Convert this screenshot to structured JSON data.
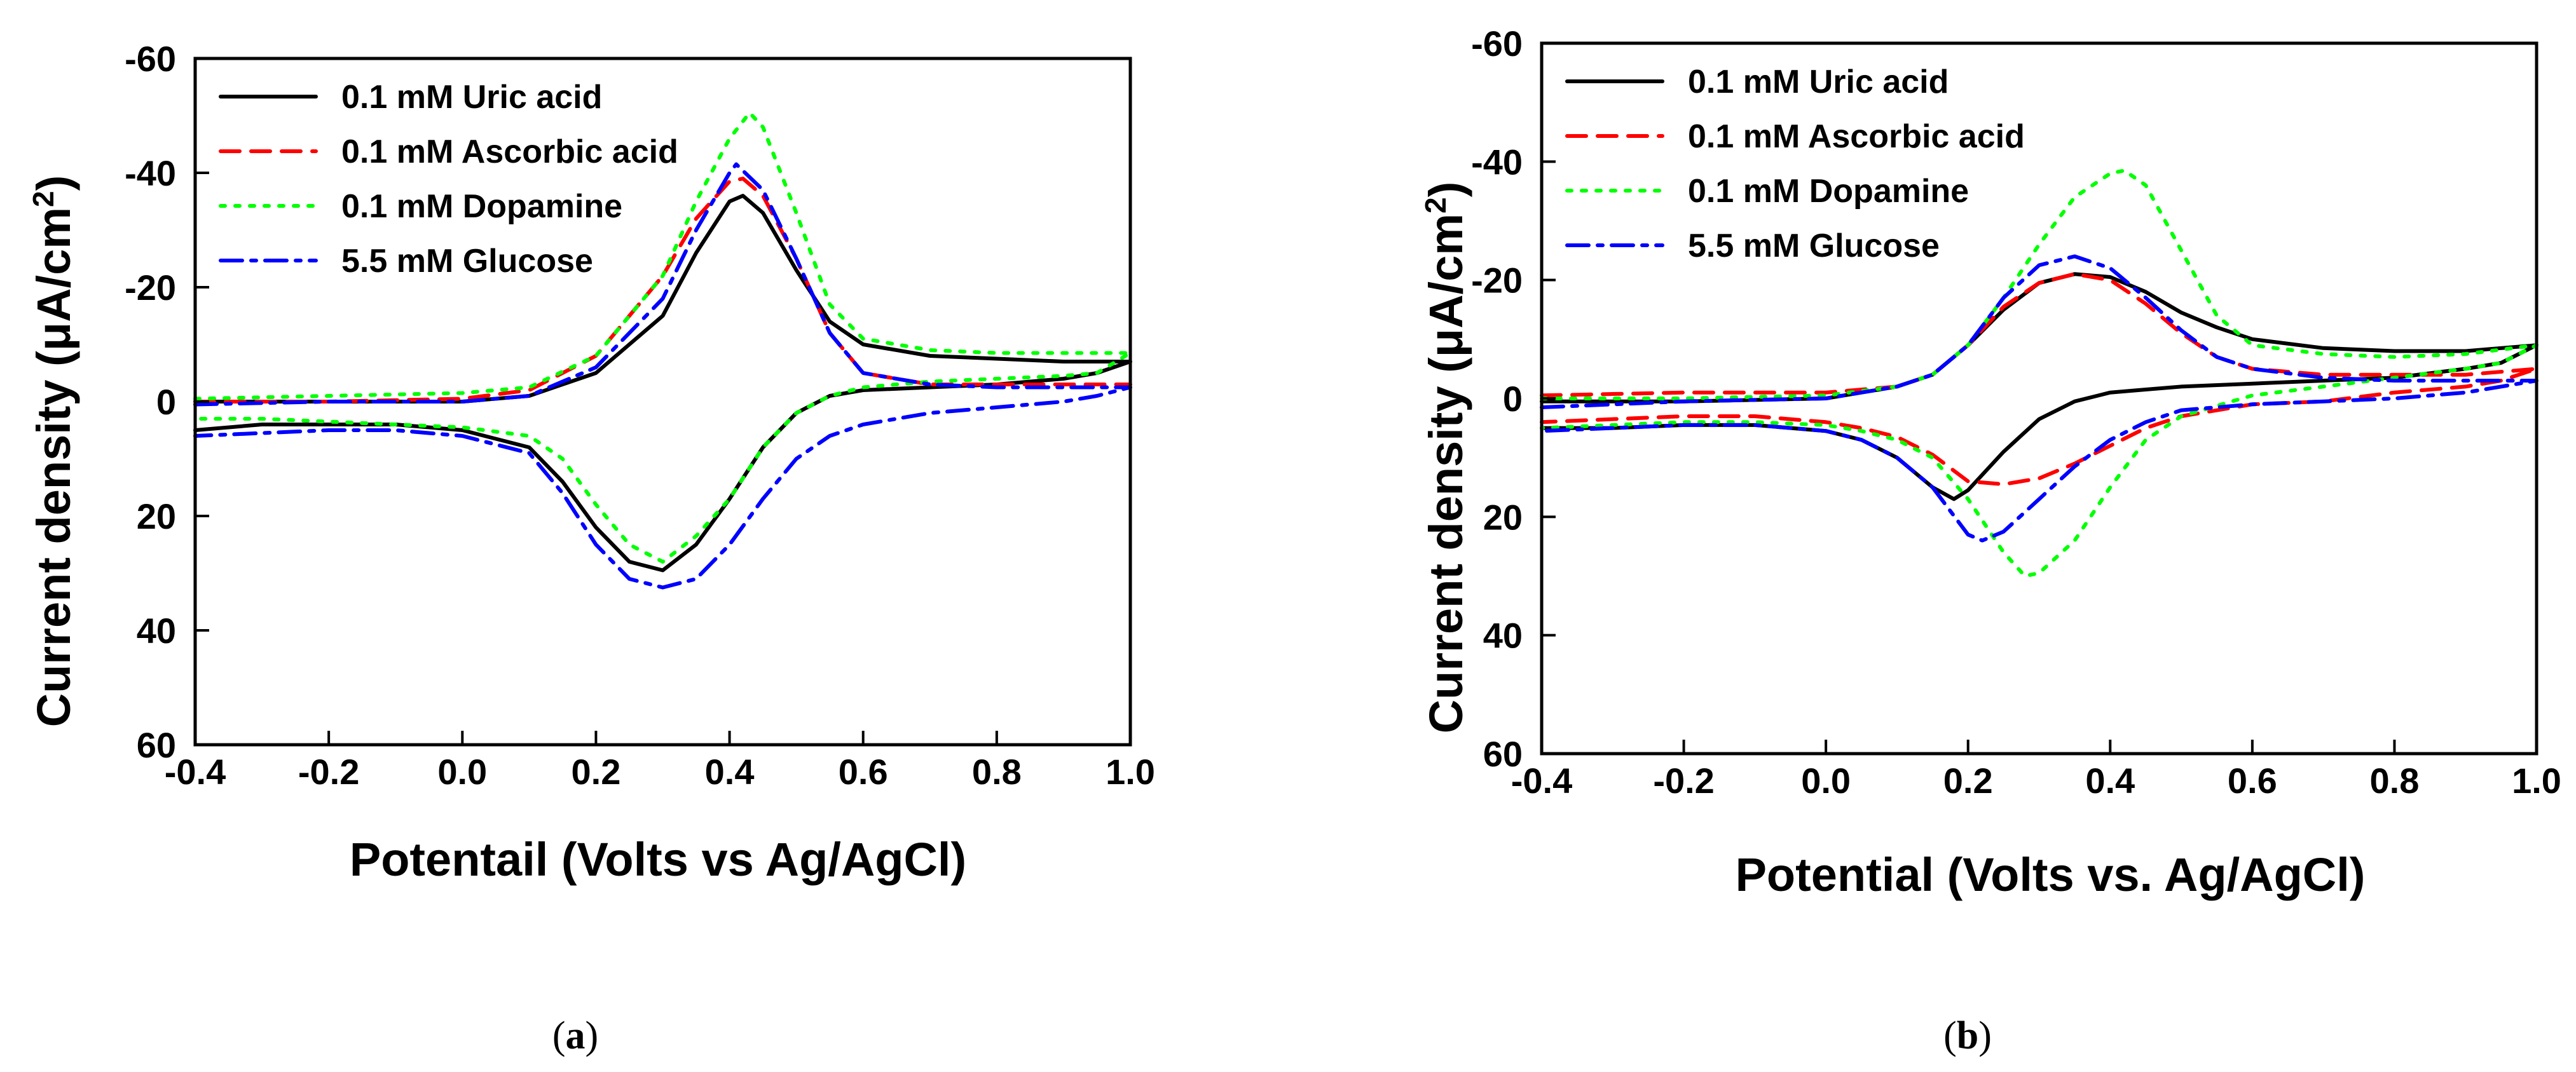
{
  "chart_data": [
    {
      "type": "line",
      "caption": "(a)",
      "caption_letter": "a",
      "xlabel": "Potentail (Volts vs Ag/AgCl)",
      "ylabel_main": "Current density (μA/cm",
      "ylabel_sup": "2",
      "ylabel_end": ")",
      "xlim": [
        -0.4,
        1.0
      ],
      "ylim": [
        60,
        -60
      ],
      "xticks": [
        "-0.4",
        "-0.2",
        "0.0",
        "0.2",
        "0.4",
        "0.6",
        "0.8",
        "1.0"
      ],
      "yticks": [
        "-60",
        "-40",
        "-20",
        "0",
        "20",
        "40",
        "60"
      ],
      "legend_position": "top-left",
      "grid": false,
      "series": [
        {
          "name": "0.1 mM Uric acid",
          "color": "#000000",
          "dash": "solid",
          "x": [
            -0.4,
            -0.2,
            0.0,
            0.1,
            0.2,
            0.3,
            0.35,
            0.4,
            0.42,
            0.45,
            0.5,
            0.55,
            0.6,
            0.7,
            0.8,
            0.9,
            1.0,
            0.95,
            0.9,
            0.8,
            0.7,
            0.6,
            0.55,
            0.5,
            0.45,
            0.4,
            0.35,
            0.3,
            0.25,
            0.2,
            0.15,
            0.1,
            0.0,
            -0.1,
            -0.2,
            -0.3,
            -0.4
          ],
          "y": [
            0,
            0,
            0,
            -1,
            -5,
            -15,
            -26,
            -35,
            -36,
            -33,
            -23,
            -14,
            -10,
            -8,
            -7.5,
            -7,
            -7,
            -5,
            -4,
            -3,
            -2.5,
            -2,
            -1,
            2,
            8,
            17,
            25,
            29.5,
            28,
            22,
            14,
            8,
            5,
            4,
            4,
            4,
            5
          ],
          "ref": "Uric"
        },
        {
          "name": "0.1 mM Ascorbic acid",
          "color": "#ff0000",
          "dash": "dashed",
          "x": [
            -0.4,
            -0.2,
            0.0,
            0.1,
            0.2,
            0.3,
            0.35,
            0.4,
            0.42,
            0.45,
            0.5,
            0.55,
            0.6,
            0.7,
            0.8,
            0.9,
            1.0
          ],
          "y": [
            0,
            0,
            -0.5,
            -2,
            -8,
            -22,
            -32,
            -38.5,
            -39,
            -36,
            -25,
            -12,
            -5,
            -3,
            -3,
            -3,
            -3
          ],
          "ref": "Ascorbic"
        },
        {
          "name": "0.1 mM Dopamine",
          "color": "#00ff00",
          "dash": "dotted",
          "x": [
            -0.4,
            -0.2,
            0.0,
            0.1,
            0.2,
            0.3,
            0.35,
            0.4,
            0.43,
            0.45,
            0.5,
            0.55,
            0.6,
            0.7,
            0.8,
            0.9,
            1.0,
            0.95,
            0.9,
            0.8,
            0.7,
            0.6,
            0.55,
            0.5,
            0.45,
            0.4,
            0.35,
            0.3,
            0.25,
            0.2,
            0.15,
            0.1,
            0.0,
            -0.1,
            -0.2,
            -0.3,
            -0.4
          ],
          "y": [
            -0.5,
            -1,
            -1.5,
            -2.5,
            -8,
            -22,
            -35,
            -46,
            -50.5,
            -48,
            -33,
            -17,
            -11,
            -9,
            -8.5,
            -8.5,
            -8.5,
            -5,
            -4.5,
            -4,
            -3.5,
            -2.5,
            -1,
            2,
            8,
            17,
            23.5,
            28,
            25,
            18,
            10,
            6,
            4.5,
            4,
            3.5,
            3,
            3
          ],
          "ref": "Dopamine"
        },
        {
          "name": "5.5 mM Glucose",
          "color": "#0000ff",
          "dash": "dashdot",
          "x": [
            -0.4,
            -0.2,
            0.0,
            0.1,
            0.2,
            0.3,
            0.35,
            0.4,
            0.41,
            0.45,
            0.5,
            0.55,
            0.6,
            0.7,
            0.8,
            0.9,
            1.0,
            0.95,
            0.9,
            0.8,
            0.7,
            0.6,
            0.55,
            0.5,
            0.45,
            0.4,
            0.35,
            0.3,
            0.25,
            0.2,
            0.15,
            0.1,
            0.0,
            -0.1,
            -0.2,
            -0.3,
            -0.4
          ],
          "y": [
            0.5,
            0,
            0,
            -1,
            -6,
            -18,
            -30,
            -40,
            -41.5,
            -37,
            -25,
            -12,
            -5,
            -3,
            -2.5,
            -2.5,
            -2.5,
            -1,
            0,
            1,
            2,
            4,
            6,
            10,
            17,
            25,
            31,
            32.5,
            31,
            25,
            16,
            9,
            6,
            5,
            5,
            5.5,
            6
          ],
          "ref": "Glucose"
        }
      ]
    },
    {
      "type": "line",
      "caption": "(b)",
      "caption_letter": "b",
      "xlabel": "Potential (Volts vs. Ag/AgCl)",
      "ylabel_main": "Current density (μA/cm",
      "ylabel_sup": "2",
      "ylabel_end": ")",
      "xlim": [
        -0.4,
        1.0
      ],
      "ylim": [
        60,
        -60
      ],
      "xticks": [
        "-0.4",
        "-0.2",
        "0.0",
        "0.2",
        "0.4",
        "0.6",
        "0.8",
        "1.0"
      ],
      "yticks": [
        "-60",
        "-40",
        "-20",
        "0",
        "20",
        "40",
        "60"
      ],
      "legend_position": "top-left",
      "grid": false,
      "series": [
        {
          "name": "0.1 mM Uric acid",
          "color": "#000000",
          "dash": "solid",
          "x": [
            -0.4,
            -0.2,
            0.0,
            0.1,
            0.15,
            0.2,
            0.25,
            0.3,
            0.35,
            0.4,
            0.45,
            0.5,
            0.55,
            0.6,
            0.7,
            0.8,
            0.9,
            1.0,
            0.95,
            0.9,
            0.8,
            0.7,
            0.6,
            0.5,
            0.45,
            0.4,
            0.35,
            0.3,
            0.25,
            0.2,
            0.18,
            0.15,
            0.1,
            0.05,
            0.0,
            -0.1,
            -0.2,
            -0.3,
            -0.4
          ],
          "y": [
            0.5,
            0.5,
            0,
            -2,
            -4,
            -9,
            -15,
            -19.5,
            -21,
            -20.5,
            -18,
            -14.5,
            -12,
            -10,
            -8.5,
            -8,
            -8,
            -9,
            -6,
            -5,
            -3.5,
            -3,
            -2.5,
            -2,
            -1.5,
            -1,
            0.5,
            3.5,
            9,
            15.5,
            17,
            15,
            10,
            7,
            5.5,
            4.5,
            4.5,
            5,
            5
          ],
          "ref": "Uric"
        },
        {
          "name": "0.1 mM Ascorbic acid",
          "color": "#ff0000",
          "dash": "dashed",
          "x": [
            -0.4,
            -0.2,
            0.0,
            0.1,
            0.15,
            0.2,
            0.25,
            0.3,
            0.35,
            0.4,
            0.45,
            0.5,
            0.55,
            0.6,
            0.7,
            0.8,
            0.9,
            1.0,
            0.95,
            0.9,
            0.8,
            0.7,
            0.6,
            0.5,
            0.45,
            0.4,
            0.35,
            0.3,
            0.25,
            0.2,
            0.15,
            0.1,
            0.05,
            0.0,
            -0.1,
            -0.2,
            -0.3,
            -0.4
          ],
          "y": [
            -0.5,
            -1,
            -1,
            -2,
            -4,
            -9,
            -15.5,
            -19.5,
            -21,
            -20,
            -16,
            -11,
            -7,
            -5,
            -4,
            -4,
            -4,
            -5,
            -3,
            -2,
            -1,
            0.5,
            1,
            3,
            5,
            8,
            11,
            13.5,
            14.5,
            14,
            9.5,
            6.5,
            5,
            4,
            3,
            3,
            3.5,
            4
          ],
          "ref": "Ascorbic"
        },
        {
          "name": "0.1 mM Dopamine",
          "color": "#00ff00",
          "dash": "dotted",
          "x": [
            -0.4,
            -0.2,
            0.0,
            0.1,
            0.15,
            0.2,
            0.25,
            0.3,
            0.35,
            0.4,
            0.42,
            0.45,
            0.5,
            0.55,
            0.6,
            0.7,
            0.8,
            0.9,
            1.0,
            0.95,
            0.9,
            0.8,
            0.7,
            0.6,
            0.5,
            0.45,
            0.4,
            0.35,
            0.3,
            0.28,
            0.25,
            0.2,
            0.15,
            0.1,
            0.05,
            0.0,
            -0.1,
            -0.2,
            -0.3,
            -0.4
          ],
          "y": [
            0,
            0,
            -0.5,
            -2,
            -4,
            -9,
            -17,
            -26,
            -34,
            -38,
            -38.5,
            -36,
            -25,
            -14,
            -9,
            -7.5,
            -7,
            -7.5,
            -9,
            -6,
            -5,
            -3.5,
            -2,
            -0.5,
            3,
            7,
            15,
            24,
            29.5,
            30,
            26,
            17,
            10,
            7,
            5.5,
            4.5,
            4,
            4,
            4.5,
            5
          ],
          "ref": "Dopamine"
        },
        {
          "name": "5.5 mM Glucose",
          "color": "#0000ff",
          "dash": "dashdot",
          "x": [
            -0.4,
            -0.2,
            0.0,
            0.1,
            0.15,
            0.2,
            0.25,
            0.3,
            0.35,
            0.4,
            0.45,
            0.5,
            0.55,
            0.6,
            0.7,
            0.8,
            0.9,
            1.0,
            0.95,
            0.9,
            0.8,
            0.7,
            0.6,
            0.5,
            0.45,
            0.4,
            0.35,
            0.3,
            0.25,
            0.22,
            0.2,
            0.15,
            0.1,
            0.05,
            0.0,
            -0.1,
            -0.2,
            -0.3,
            -0.4
          ],
          "y": [
            1.5,
            0.5,
            0,
            -2,
            -4,
            -9,
            -17,
            -22.5,
            -24,
            -22,
            -17,
            -11.5,
            -7,
            -5,
            -3.5,
            -3,
            -3,
            -3,
            -2,
            -1,
            0,
            0.5,
            1,
            2,
            4,
            7,
            11.5,
            17,
            22.5,
            24,
            23,
            15,
            10,
            7,
            5.5,
            4.5,
            4.5,
            5,
            5.5
          ],
          "ref": "Glucose"
        }
      ]
    }
  ]
}
